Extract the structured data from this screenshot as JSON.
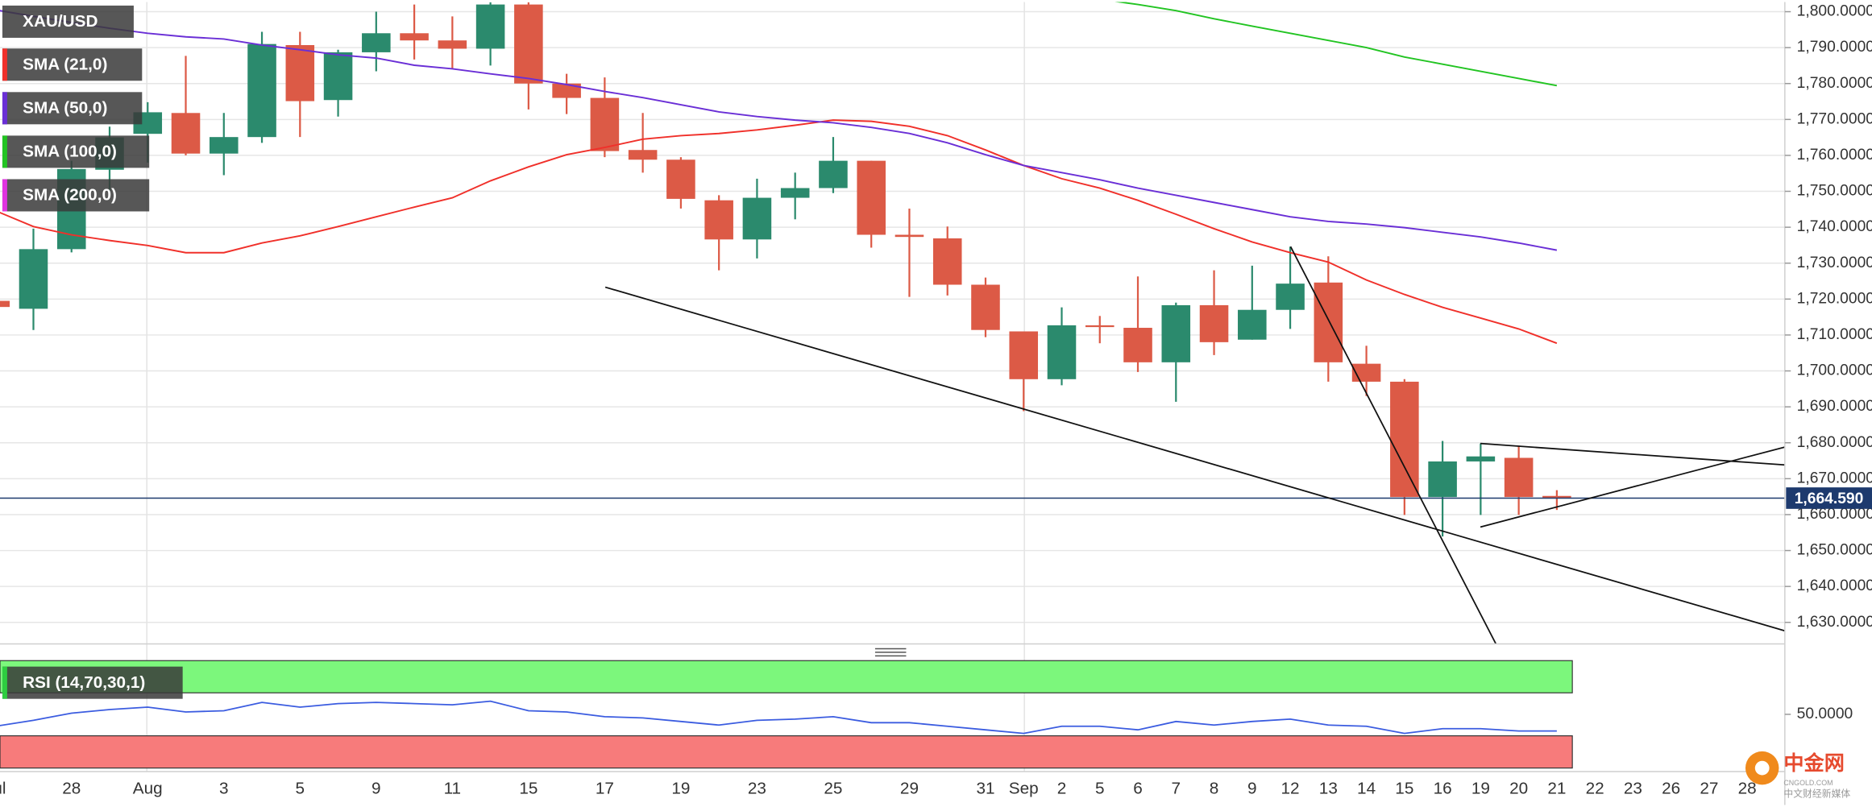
{
  "chart_data": {
    "type": "candlestick",
    "symbol": "XAU/USD",
    "categories": [
      "Jul",
      null,
      "28",
      null,
      "Aug",
      null,
      "3",
      null,
      "5",
      null,
      "9",
      null,
      "11",
      null,
      "15",
      null,
      "17",
      null,
      "19",
      null,
      "23",
      null,
      "25",
      null,
      "29",
      null,
      "31",
      "Sep",
      "2",
      "5",
      "6",
      "7",
      "8",
      "9",
      "12",
      "13",
      "14",
      "15",
      "16",
      "19",
      "20",
      "21",
      "22",
      "23",
      "26",
      "27",
      "28"
    ],
    "candles": {
      "open": [
        1719.5,
        1717.3,
        1733.9,
        1756,
        1766,
        1771.8,
        1760.5,
        1765.1,
        1790.7,
        1775.4,
        1788.7,
        1794,
        1792,
        1789.7,
        1802,
        1780,
        1776,
        1761.5,
        1758.8,
        1747.5,
        1736.6,
        1748.2,
        1750.9,
        1758.5,
        1737.9,
        1736.9,
        1724,
        1711,
        1697.7,
        1712.7,
        1712,
        1702.4,
        1718.3,
        1708.7,
        1717,
        1724.6,
        1702,
        1697,
        1664.9,
        1674.8,
        1675.8,
        1665.2,
        null,
        null,
        null,
        null,
        null
      ],
      "high": [
        1720,
        1739.6,
        1758.5,
        1768,
        1774.8,
        1787.7,
        1771.8,
        1794.4,
        1794.4,
        1789.4,
        1800,
        1802,
        1798.7,
        1802.6,
        1802.6,
        1782.7,
        1781.7,
        1771.8,
        1759.5,
        1748.9,
        1753.5,
        1755.2,
        1765.1,
        1758.5,
        1745.2,
        1740.2,
        1726,
        1711,
        1717.7,
        1715.3,
        1726.3,
        1719,
        1728,
        1729.3,
        1734.6,
        1731.9,
        1707,
        1697.7,
        1680.5,
        1679.8,
        1679.2,
        1666.8,
        null,
        null,
        null,
        null,
        null
      ],
      "low": [
        1717,
        1711.4,
        1733,
        1750,
        1758,
        1760,
        1754.5,
        1763.5,
        1765.1,
        1770.8,
        1783.4,
        1786.7,
        1784,
        1785,
        1772.8,
        1771.5,
        1759.5,
        1755.2,
        1745.2,
        1728,
        1731.3,
        1742.2,
        1749.5,
        1734.3,
        1720.6,
        1721,
        1709.4,
        1688.8,
        1696,
        1707.7,
        1699.7,
        1691.4,
        1704.4,
        1708.7,
        1711.7,
        1697,
        1693,
        1659.9,
        1653.9,
        1659.9,
        1659.9,
        1661.3,
        null,
        null,
        null,
        null,
        null
      ],
      "close": [
        1717.8,
        1733.9,
        1756.2,
        1765,
        1772,
        1760.5,
        1765.1,
        1791,
        1775.1,
        1788.7,
        1794,
        1792,
        1789.7,
        1802,
        1780,
        1776,
        1761.2,
        1758.8,
        1747.9,
        1736.6,
        1748.2,
        1750.9,
        1758.5,
        1737.9,
        1737.3,
        1724,
        1711.4,
        1697.7,
        1712.7,
        1712.2,
        1702.4,
        1718.3,
        1708,
        1717,
        1724.3,
        1702.4,
        1697,
        1664.9,
        1674.8,
        1676.2,
        1664.9,
        1664.6,
        null,
        null,
        null,
        null,
        null
      ]
    },
    "up_color": "#2b8a6d",
    "down_color": "#dc5a46",
    "series": [
      {
        "name": "SMA (21,0)",
        "color": "#f0302a",
        "values": [
          1744.6,
          1740.2,
          1737.9,
          1736.3,
          1734.9,
          1732.9,
          1732.9,
          1735.6,
          1737.6,
          1740.2,
          1742.9,
          1745.6,
          1748.2,
          1752.9,
          1756.8,
          1760.2,
          1762.2,
          1764.5,
          1765.5,
          1766.1,
          1767.1,
          1768.4,
          1769.8,
          1769.5,
          1768.1,
          1765.5,
          1761.5,
          1757.2,
          1753.5,
          1750.9,
          1747.5,
          1743.6,
          1739.6,
          1735.9,
          1732.9,
          1730.3,
          1725.3,
          1721.3,
          1717.7,
          1714.7,
          1711.7,
          1707.7,
          null,
          null,
          null,
          null,
          null
        ]
      },
      {
        "name": "SMA (50,0)",
        "color": "#6a2fd6",
        "values": [
          1800.5,
          1798.7,
          1797,
          1795.4,
          1794,
          1793,
          1792.4,
          1790.7,
          1789.4,
          1788,
          1787.1,
          1785.1,
          1784.1,
          1782.7,
          1781.4,
          1779.7,
          1777.8,
          1776.1,
          1774.1,
          1772.1,
          1770.8,
          1769.8,
          1769.1,
          1767.8,
          1766.1,
          1763.5,
          1760.2,
          1757.2,
          1755.2,
          1753.2,
          1750.9,
          1748.9,
          1746.9,
          1744.9,
          1742.9,
          1741.6,
          1740.9,
          1739.9,
          1738.6,
          1737.3,
          1735.6,
          1733.6,
          null,
          null,
          null,
          null,
          null
        ]
      },
      {
        "name": "SMA (100,0)",
        "color": "#22c422",
        "values": [
          null,
          null,
          null,
          null,
          null,
          null,
          null,
          null,
          null,
          null,
          null,
          null,
          null,
          null,
          null,
          null,
          null,
          null,
          null,
          null,
          null,
          null,
          null,
          null,
          null,
          null,
          null,
          null,
          null,
          1803.5,
          1802,
          1800.3,
          1798,
          1796,
          1794,
          1792,
          1790,
          1787.4,
          1785.4,
          1783.4,
          1781.4,
          1779.4,
          null,
          null,
          null,
          null,
          null
        ]
      },
      {
        "name": "SMA (200,0)",
        "color": "#e033e0",
        "values": [
          null,
          null,
          null,
          null,
          null,
          null,
          null,
          null,
          null,
          null,
          null,
          null,
          null,
          null,
          null,
          null,
          null,
          null,
          null,
          null,
          null,
          null,
          null,
          null,
          null,
          null,
          null,
          null,
          null,
          null,
          null,
          null,
          null,
          null,
          null,
          null,
          null,
          null,
          null,
          null,
          null,
          null,
          null,
          null,
          null,
          null,
          null
        ]
      }
    ],
    "ylim": [
      1624,
      1802.7
    ],
    "yticks": [
      {
        "value": 1800,
        "label": "1,800.0000"
      },
      {
        "value": 1790,
        "label": "1,790.0000"
      },
      {
        "value": 1780,
        "label": "1,780.0000"
      },
      {
        "value": 1770,
        "label": "1,770.0000"
      },
      {
        "value": 1760,
        "label": "1,760.0000"
      },
      {
        "value": 1750,
        "label": "1,750.0000"
      },
      {
        "value": 1740,
        "label": "1,740.0000"
      },
      {
        "value": 1730,
        "label": "1,730.0000"
      },
      {
        "value": 1720,
        "label": "1,720.0000"
      },
      {
        "value": 1710,
        "label": "1,710.0000"
      },
      {
        "value": 1700,
        "label": "1,700.0000"
      },
      {
        "value": 1690,
        "label": "1,690.0000"
      },
      {
        "value": 1680,
        "label": "1,680.0000"
      },
      {
        "value": 1670,
        "label": "1,670.0000"
      },
      {
        "value": 1660,
        "label": "1,660.0000"
      },
      {
        "value": 1650,
        "label": "1,650.0000"
      },
      {
        "value": 1640,
        "label": "1,640.0000"
      },
      {
        "value": 1630,
        "label": "1,630.0000"
      }
    ],
    "grid": true,
    "last_price": {
      "value": 1664.59,
      "label": "1,664.590",
      "color": "#1d3a6e"
    },
    "rsi": {
      "name": "RSI (14,70,30,1)",
      "color": "#3b5ce0",
      "values": [
        38.9,
        44.4,
        51.1,
        54.4,
        56.7,
        52.2,
        53.3,
        61.1,
        56.7,
        60,
        61.1,
        60,
        58.9,
        62.2,
        53.3,
        52.2,
        47.8,
        46.7,
        43.3,
        40,
        44.4,
        45.6,
        47.8,
        42.2,
        42.2,
        38.9,
        35.6,
        32.2,
        38.9,
        38.9,
        35.6,
        43.3,
        40,
        43.3,
        45.6,
        40,
        38.9,
        32.2,
        36.7,
        36.7,
        34.4,
        34.4,
        null,
        null,
        null,
        null,
        null
      ],
      "ylim": [
        0,
        100
      ],
      "yticks": [
        {
          "value": 50,
          "label": "50.0000"
        }
      ],
      "overbought": 70,
      "oversold": 30,
      "overbought_color": "#7cf77c",
      "oversold_color": "#f77b7b"
    },
    "brand": {
      "name": "中金网",
      "site": "CNGOLD.COM",
      "slogan": "中文财经新媒体"
    }
  }
}
